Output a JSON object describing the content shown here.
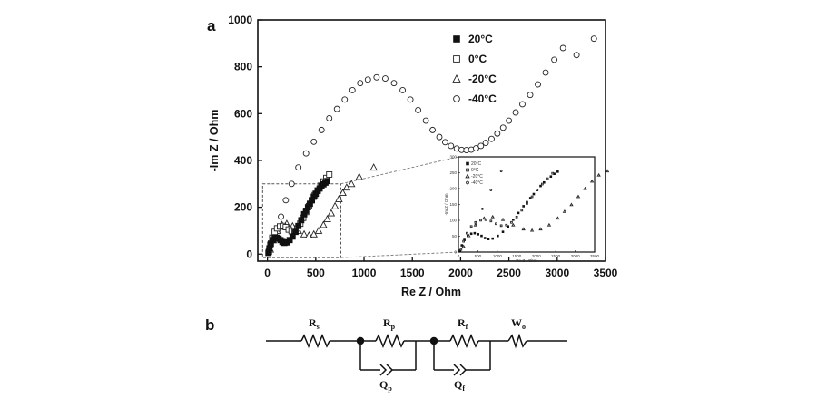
{
  "panel_a_label": "a",
  "panel_b_label": "b",
  "chart_data": {
    "type": "scatter",
    "xlabel": "Re Z / Ohm",
    "ylabel": "-Im Z / Ohm",
    "xlim": [
      -100,
      3500
    ],
    "ylim": [
      -30,
      1000
    ],
    "xticks": [
      0,
      500,
      1000,
      1500,
      2000,
      2500,
      3000,
      3500
    ],
    "yticks": [
      0,
      200,
      400,
      600,
      800,
      1000
    ],
    "legend_position": "top-right",
    "series": [
      {
        "name": "20°C",
        "marker": "filled-square",
        "x": [
          10,
          20,
          35,
          55,
          75,
          95,
          115,
          135,
          155,
          175,
          200,
          230,
          260,
          290,
          320,
          350,
          380,
          400,
          420,
          440,
          460,
          480,
          500,
          520,
          540,
          560,
          580,
          600,
          620
        ],
        "y": [
          5,
          25,
          45,
          60,
          68,
          70,
          66,
          60,
          52,
          48,
          50,
          60,
          75,
          95,
          120,
          145,
          170,
          185,
          200,
          215,
          230,
          245,
          258,
          270,
          280,
          290,
          298,
          305,
          312
        ]
      },
      {
        "name": "0°C",
        "marker": "open-square",
        "x": [
          15,
          30,
          50,
          75,
          100,
          130,
          160,
          190,
          220,
          250,
          280,
          310,
          340,
          370,
          400,
          430,
          460,
          490,
          520,
          550,
          580,
          610,
          640
        ],
        "y": [
          10,
          40,
          70,
          95,
          110,
          118,
          120,
          115,
          105,
          98,
          100,
          110,
          130,
          155,
          180,
          205,
          230,
          252,
          272,
          292,
          310,
          325,
          340
        ]
      },
      {
        "name": "-20°C",
        "marker": "open-triangle",
        "x": [
          30,
          60,
          100,
          150,
          200,
          260,
          320,
          380,
          430,
          480,
          530,
          580,
          620,
          660,
          700,
          740,
          780,
          820,
          870,
          950,
          1100
        ],
        "y": [
          20,
          60,
          100,
          125,
          130,
          120,
          100,
          85,
          80,
          85,
          100,
          125,
          150,
          175,
          205,
          235,
          262,
          285,
          300,
          330,
          370
        ]
      },
      {
        "name": "-40°C",
        "marker": "open-circle",
        "x": [
          100,
          140,
          190,
          250,
          320,
          400,
          480,
          560,
          640,
          720,
          800,
          880,
          960,
          1040,
          1130,
          1220,
          1310,
          1400,
          1480,
          1560,
          1640,
          1710,
          1780,
          1840,
          1900,
          1960,
          2010,
          2060,
          2110,
          2160,
          2210,
          2260,
          2320,
          2380,
          2440,
          2500,
          2570,
          2640,
          2720,
          2800,
          2880,
          2970,
          3060,
          3200,
          3380
        ],
        "y": [
          100,
          160,
          230,
          300,
          370,
          430,
          480,
          530,
          580,
          620,
          660,
          700,
          730,
          745,
          755,
          750,
          730,
          700,
          660,
          615,
          570,
          530,
          500,
          478,
          462,
          451,
          445,
          444,
          446,
          452,
          462,
          475,
          492,
          515,
          540,
          570,
          605,
          640,
          680,
          725,
          775,
          830,
          880,
          850,
          920
        ]
      }
    ],
    "zoom_box": {
      "x": [
        -50,
        760
      ],
      "y": [
        -15,
        300
      ]
    },
    "inset": {
      "xlim": [
        0,
        3500
      ],
      "ylim": [
        0,
        300
      ],
      "xticks": [
        0,
        500,
        1000,
        1500,
        2000,
        2500,
        3000,
        3500
      ],
      "yticks": [
        0,
        50,
        100,
        150,
        200,
        250,
        300
      ]
    }
  },
  "circuit": {
    "elements": [
      {
        "name": "Rs",
        "main": "R",
        "sub": "s"
      },
      {
        "name": "Rp",
        "main": "R",
        "sub": "p"
      },
      {
        "name": "Rf",
        "main": "R",
        "sub": "f"
      },
      {
        "name": "W",
        "main": "W",
        "sub": "o"
      },
      {
        "name": "Qp",
        "main": "Q",
        "sub": "p"
      },
      {
        "name": "Qf",
        "main": "Q",
        "sub": "f"
      }
    ]
  }
}
